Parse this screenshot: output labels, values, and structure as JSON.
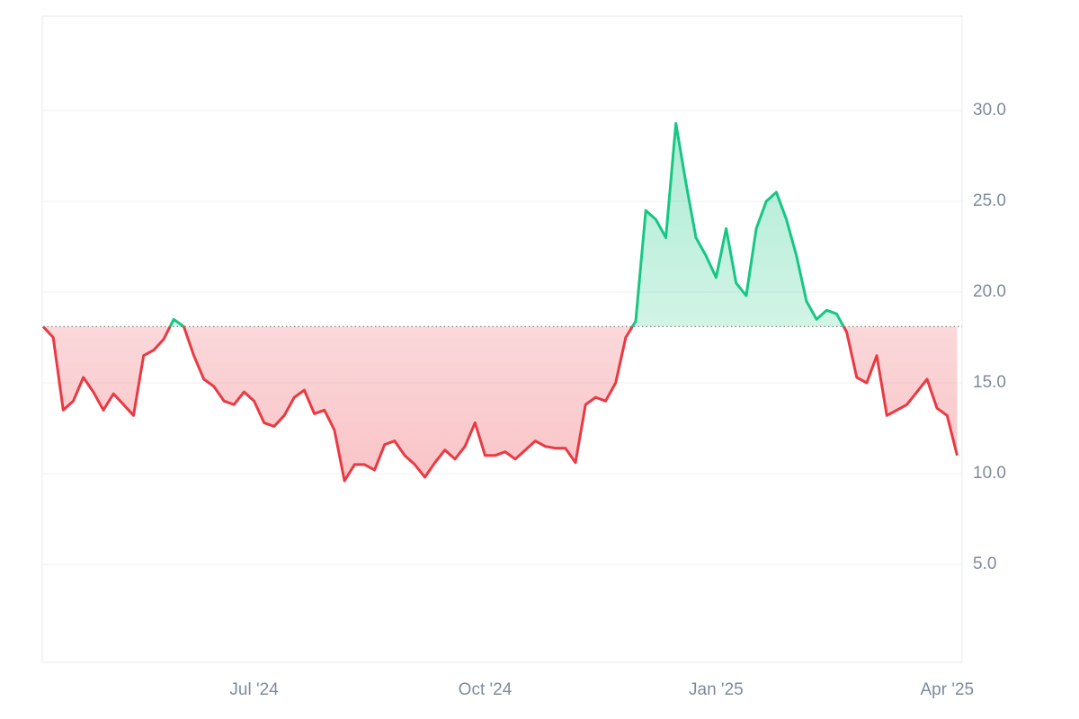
{
  "chart_data": {
    "type": "line",
    "categories": [
      null,
      null,
      null,
      null,
      null,
      null,
      null,
      null,
      null,
      null,
      null,
      null,
      null,
      null,
      null,
      null,
      null,
      null,
      null,
      null,
      null,
      "Jul '24",
      null,
      null,
      null,
      null,
      null,
      null,
      null,
      null,
      null,
      null,
      null,
      null,
      null,
      null,
      null,
      null,
      null,
      null,
      null,
      null,
      null,
      null,
      "Oct '24",
      null,
      null,
      null,
      null,
      null,
      null,
      null,
      null,
      null,
      null,
      null,
      null,
      null,
      null,
      null,
      null,
      null,
      null,
      null,
      null,
      null,
      null,
      "Jan '25",
      null,
      null,
      null,
      null,
      null,
      null,
      null,
      null,
      null,
      null,
      null,
      null,
      null,
      null,
      null,
      null,
      null,
      null,
      null,
      null,
      null,
      null,
      "Apr '25",
      null
    ],
    "values": [
      18.1,
      17.5,
      13.5,
      14.0,
      15.3,
      14.5,
      13.5,
      14.4,
      13.8,
      13.2,
      16.5,
      16.8,
      17.4,
      18.5,
      18.1,
      16.5,
      15.2,
      14.8,
      14.0,
      13.8,
      14.5,
      14.0,
      12.8,
      12.6,
      13.2,
      14.2,
      14.6,
      13.3,
      13.5,
      12.4,
      9.6,
      10.5,
      10.5,
      10.2,
      11.6,
      11.8,
      11.0,
      10.5,
      9.8,
      10.6,
      11.3,
      10.8,
      11.5,
      12.8,
      11.0,
      11.0,
      11.2,
      10.8,
      11.3,
      11.8,
      11.5,
      11.4,
      11.4,
      10.6,
      13.8,
      14.2,
      14.0,
      15.0,
      17.5,
      18.4,
      24.5,
      24.0,
      23.0,
      29.3,
      26.0,
      23.0,
      22.0,
      20.8,
      23.5,
      20.5,
      19.8,
      23.5,
      25.0,
      25.5,
      24.0,
      22.0,
      19.5,
      18.5,
      19.0,
      18.8,
      17.8,
      15.3,
      15.0,
      16.5,
      13.2,
      13.5,
      13.8,
      14.5,
      15.2,
      13.6,
      13.2,
      11.0
    ],
    "baseline": 18.1,
    "up_color": "#16c784",
    "down_color": "#ea3943",
    "ylim": [
      -0.4,
      35.2
    ],
    "yticks": [
      {
        "value": 5,
        "label": "5.0"
      },
      {
        "value": 10,
        "label": "10.0"
      },
      {
        "value": 15,
        "label": "15.0"
      },
      {
        "value": 20,
        "label": "20.0"
      },
      {
        "value": 25,
        "label": "25.0"
      },
      {
        "value": 30,
        "label": "30.0"
      }
    ],
    "grid": true
  }
}
